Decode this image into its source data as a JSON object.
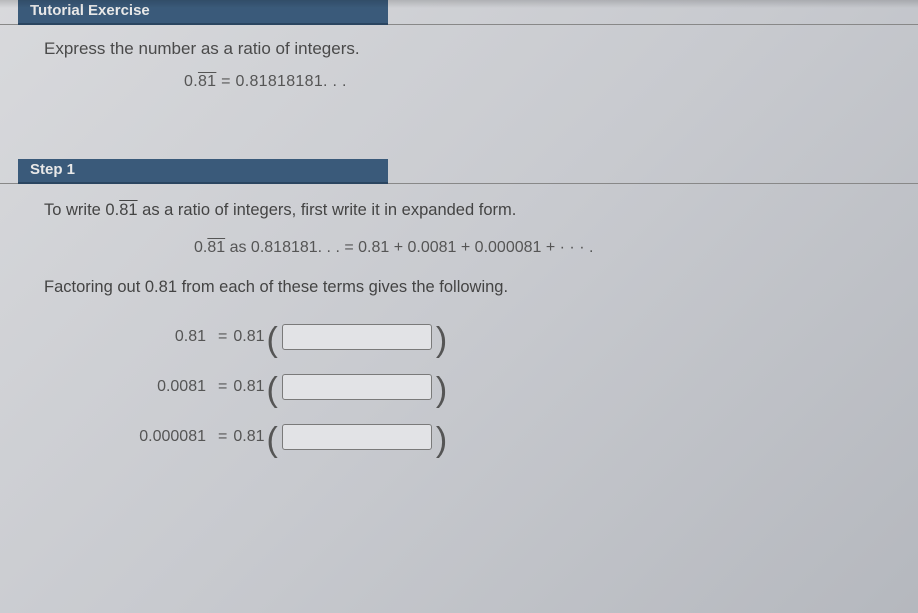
{
  "tutorial": {
    "header_label": "Tutorial Exercise",
    "prompt": "Express the number as a ratio of integers.",
    "lhs_prefix": "0.",
    "lhs_repeat": "81",
    "eq_sign": " = ",
    "rhs_expansion": "0.81818181. . ."
  },
  "step1": {
    "header_label": "Step 1",
    "intro_pre": "To write 0.",
    "intro_repeat": "81",
    "intro_post": " as a ratio of integers, first write it in expanded form.",
    "expansion_line_pre": "0.",
    "expansion_line_repeat": "81",
    "expansion_line_mid": " as 0.818181. . . = 0.81 + 0.0081 + 0.000081 + · · · .",
    "factor_text": "Factoring out 0.81 from each of these terms gives the following.",
    "rows": [
      {
        "left": "0.81",
        "coef": "0.81"
      },
      {
        "left": "0.0081",
        "coef": "0.81"
      },
      {
        "left": "0.000081",
        "coef": "0.81"
      }
    ],
    "equals": "="
  },
  "colors": {
    "header_bg": "#3a5a7a",
    "header_fg": "#e8e8e8",
    "text": "#444444",
    "box_border": "#7a7a7a",
    "box_bg": "#e2e3e6"
  }
}
